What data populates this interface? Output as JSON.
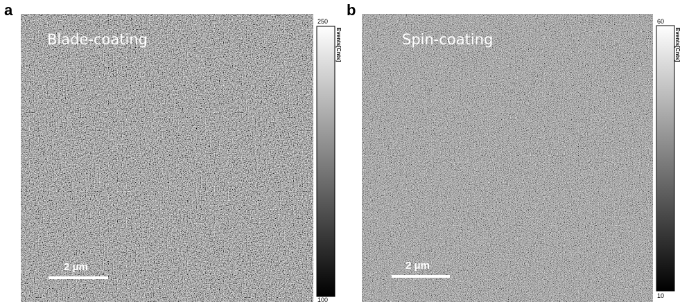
{
  "panels": [
    {
      "label": "a",
      "title": "Blade-coating",
      "scale_bar": "2 μm",
      "colorbar_label": "Events[Cnts]",
      "colorbar_max": "250",
      "colorbar_min": "100"
    },
    {
      "label": "b",
      "title": "Spin-coating",
      "scale_bar": "2 μm",
      "colorbar_label": "Events[Cnts]",
      "colorbar_max": "60",
      "colorbar_min": "10"
    }
  ]
}
